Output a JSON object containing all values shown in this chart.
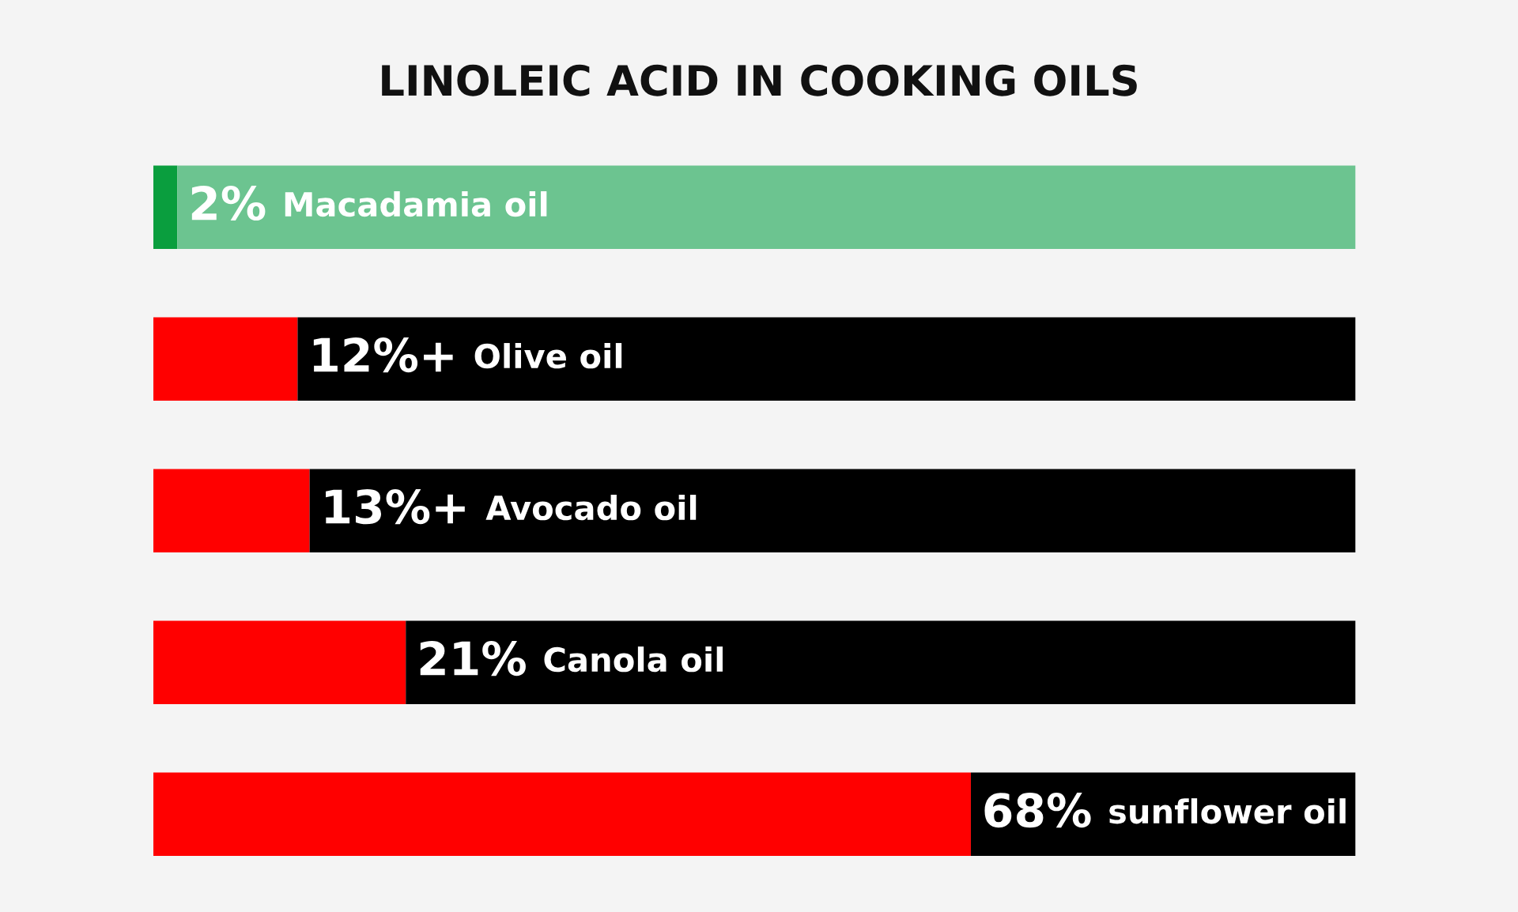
{
  "chart_data": {
    "type": "bar",
    "orientation": "horizontal",
    "stacked": true,
    "title": "LINOLEIC ACID IN COOKING OILS",
    "categories": [
      "Macadamia oil",
      "Olive oil",
      "Avocado oil",
      "Canola oil",
      "sunflower oil"
    ],
    "xlim": [
      0,
      100
    ],
    "series": [
      {
        "colors": [
          "#0a9e3e",
          "#ff0000",
          "#ff0000",
          "#ff0000",
          "#ff0000"
        ],
        "values": [
          2,
          12,
          13,
          21,
          68
        ],
        "value_labels": [
          "2%",
          "12%+",
          "13%+",
          "21%",
          "68%"
        ]
      },
      {
        "colors": [
          "#6cc490",
          "#000000",
          "#000000",
          "#000000",
          "#000000"
        ],
        "values": [
          98,
          88,
          87,
          79,
          32
        ]
      }
    ]
  }
}
